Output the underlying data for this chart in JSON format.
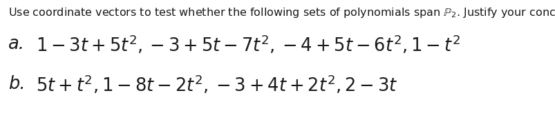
{
  "background_color": "#ffffff",
  "text_color": "#1a1a1a",
  "instruction_text": "Use coordinate vectors to test whether the following sets of polynomials span $\\mathbb{P}_2$. Justify your conclusions.",
  "part_a_label": "a.",
  "part_a_math": "$1 - 3t + 5t^2, -3 + 5t - 7t^2, -4 + 5t - 6t^2, 1 - t^2$",
  "part_b_label": "b.",
  "part_b_math": "$5t + t^2, 1 - 8t - 2t^2, -3 + 4t + 2t^2, 2 - 3t$",
  "instr_fontsize": 11.5,
  "part_fontsize": 18.5,
  "label_fontsize": 18.5,
  "fig_width": 8.04,
  "fig_height": 1.77,
  "dpi": 100
}
